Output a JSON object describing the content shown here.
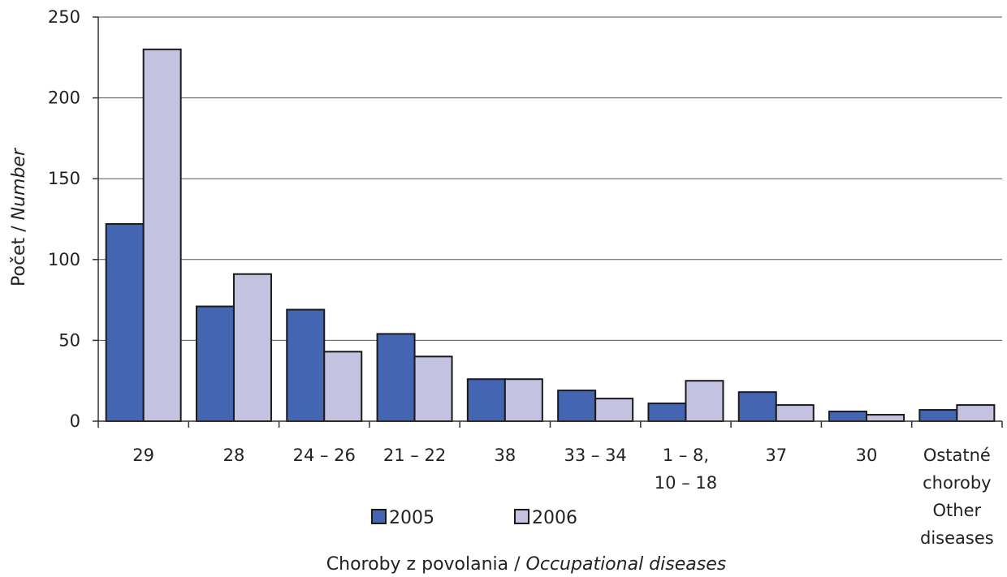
{
  "chart_data": {
    "type": "bar",
    "categories": [
      [
        "29"
      ],
      [
        "28"
      ],
      [
        "24 – 26"
      ],
      [
        "21 – 22"
      ],
      [
        "38"
      ],
      [
        "33 – 34"
      ],
      [
        "1 – 8,",
        "10 – 18"
      ],
      [
        "37"
      ],
      [
        "30"
      ],
      [
        "Ostatné",
        "choroby",
        "Other",
        "diseases"
      ]
    ],
    "series": [
      {
        "name": "2005",
        "color": "#4466b2",
        "values": [
          122,
          71,
          69,
          54,
          26,
          19,
          11,
          18,
          6,
          7
        ]
      },
      {
        "name": "2006",
        "color": "#c4c2e1",
        "values": [
          230,
          91,
          43,
          40,
          26,
          14,
          25,
          10,
          4,
          10
        ]
      }
    ],
    "ylabel": {
      "main": "Počet / ",
      "italic": "Number"
    },
    "xlabel": {
      "main": "Choroby z povolania / ",
      "italic": "Occupational diseases"
    },
    "ylim": [
      0,
      250
    ],
    "yticks": [
      "0",
      "50",
      "100",
      "150",
      "200",
      "250"
    ],
    "grid": true,
    "legend_position": "bottom"
  }
}
